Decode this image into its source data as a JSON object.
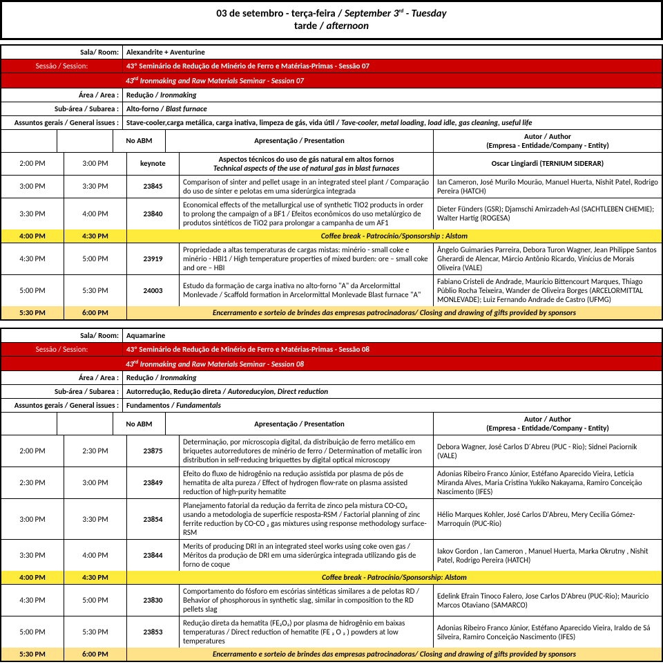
{
  "header": {
    "line1_a": "03 de setembro - terça-feira / ",
    "line1_b": "September 3",
    "line1_sup": "rd",
    "line1_c": " - Tuesday",
    "line2": "tarde / ",
    "line2_it": "afternoon"
  },
  "s1": {
    "room_lbl": "Sala/ Room:",
    "room": "Alexandrite + Aventurine",
    "sess_lbl": "Sessão / Session:",
    "sess_pt": "43º Seminário de Redução de Minério de Ferro e Matérias-Primas - Sessão  07",
    "sess_en": "43",
    "sess_en_sup": "rd",
    "sess_en2": " Ironmaking and Raw Materials Seminar - Session 07",
    "area_lbl": "Área / Area :",
    "area": "Redução / ",
    "area_it": "Ironmaking",
    "sub_lbl": "Sub-área / Subarea :",
    "sub": "Alto-forno / ",
    "sub_it": "Blast furnace",
    "gen_lbl": "Assuntos gerais / General issues :",
    "gen": "Stave-cooler,carga metálica, carga inativa, limpeza de gás, vida útil / ",
    "gen_it": "Tave-cooler, metal loading, load idle, gas cleaning, useful life",
    "h_no": "No ABM",
    "h_pres": "Apresentação / Presentation",
    "h_auth1": "Autor / Author",
    "h_auth2": "(Empresa -  Entidade/Company  - Entity)",
    "rows": [
      {
        "t1": "2:00 PM",
        "t2": "3:00 PM",
        "id": "keynote",
        "p1": "Aspectos técnicos do uso de gás natural em altos fornos",
        "p2": "Technical aspects of the use of natural gas in blast furnaces",
        "a": "Oscar Lingiardi (TERNIUM SIDERAR)",
        "center": true
      },
      {
        "t1": "3:00 PM",
        "t2": "3:30 PM",
        "id": "23845",
        "p1": "Comparison of sinter and pellet usage in an integrated steel plant / Comparação do uso de sínter e pelotas em uma siderúrgica integrada",
        "a": "Ian Cameron, José Murilo Mourão, Manuel Huerta, Nishit Patel, Rodrigo Pereira (HATCH)"
      },
      {
        "t1": "3:30 PM",
        "t2": "4:00 PM",
        "id": "23840",
        "p1": "Economical effects of the metallurgical use of synthetic TIO2 products in order to prolong the campaign of a BF1 / Efeitos econômicos do uso metalúrgico de produtos sintéticos de TiO2 para prolongar a campanha de um AF1",
        "a": "Dieter Fünders (GSR); Djamschi Amirzadeh-Asl (SACHTLEBEN CHEMIE);  Walter Hartig (ROGESA)"
      }
    ],
    "break": {
      "t1": "4:00 PM",
      "t2": "4:30 PM",
      "txt": "Coffee break -  Patrocínio/Sponsorship :  Alstom"
    },
    "rows2": [
      {
        "t1": "4:30 PM",
        "t2": "5:00 PM",
        "id": "23919",
        "p1": "Propriedade a altas temperaturas de cargas mistas: minério - small coke e minério - HBI1 / High temperature properties of mixed burden: ore – small coke and ore – HBI",
        "a": "Ângelo Guimarães Parreira, Debora Turon Wagner, Jean Philippe Santos Gherardi de Alencar, Márcio Antônio Ricardo, Vinícius de Morais Oliveira (VALE)"
      },
      {
        "t1": "5:00 PM",
        "t2": "5:30 PM",
        "id": "24003",
        "p1": "Estudo da formação de carga inativa no alto-forno \"A\" da Arcelormittal Monlevade / Scaffold formation in Arcelormittal Monlevade Blast furnace \"A\"",
        "a": "Fabiano Cristeli de Andrade, Maurício Bittencourt Marques, Thiago Públio Rocha Teixeira, Wander de Oliveira Borges (ARCELORMITTAL MONLEVADE); Luiz Fernando Andrade de Castro (UFMG)"
      }
    ],
    "close": {
      "t1": "5:30 PM",
      "t2": "6:00 PM",
      "txt": "Encerramento e sorteio de brindes das empresas patrocinadoras/ Closing and drawing of gifts provided by sponsors"
    }
  },
  "s2": {
    "room_lbl": "Sala/ Room:",
    "room": "Aquamarine",
    "sess_lbl": "Sessão / Session:",
    "sess_pt": "43º Seminário de Redução de Minério de Ferro e Matérias-Primas - Sessão  08",
    "sess_en": "43",
    "sess_en_sup": "rd",
    "sess_en2": " Ironmaking and Raw Materials Seminar - Session 08",
    "area_lbl": "Área / Area :",
    "area": "Redução / ",
    "area_it": "Ironmaking",
    "sub_lbl": "Sub-área / Subarea :",
    "sub": "Autorredução, Redução direta  / ",
    "sub_it": "Autoreducyion, Direct reduction",
    "gen_lbl": "Assuntos gerais / General issues :",
    "gen": "Fundamentos / ",
    "gen_it": "Fundamentals",
    "h_no": "No ABM",
    "h_pres": "Apresentação / Presentation",
    "h_auth1": "Autor / Author",
    "h_auth2": "(Empresa -  Entidade/Company  - Entity)",
    "rows": [
      {
        "t1": "2:00 PM",
        "t2": "2:30 PM",
        "id": "23875",
        "p1": "Determinação, por microscopia digital, da distribuição de ferro metálico em briquetes autorredutores de minério de ferro / Determination of metallic iron distribution in self-reducing briquettes by digital optical microscopy",
        "a": "Debora Wagner, José Carlos D´Abreu (PUC - Rio); Sidnei Paciornik (VALE)"
      },
      {
        "t1": "2:30 PM",
        "t2": "3:00 PM",
        "id": "23849",
        "p1": "Efeito do fluxo de hidrogênio na redução assistida por plasma de pós de hematita de alta pureza / Effect of hydrogen flow-rate on plasma assisted reduction of  high-purity hematite",
        "a": "Adonias Ribeiro Franco Júnior, Estéfano Aparecido Vieira, Letícia Miranda Alves, Maria Cristina Yukiko Nakayama, Ramiro Conceição Nascimento (IFES)"
      },
      {
        "t1": "3:00 PM",
        "t2": "3:30 PM",
        "id": "23854",
        "p1": "Planejamento fatorial da redução da ferrita de zinco pela mistura CO-CO₂ usando a metodologia de superfície resposta-RSM / Factorial planning of zinc ferrite reduction by CO-CO ₂  gas mixtures using response methodology surface-RSM",
        "a": "Hélio Marques Kohler, José Carlos D'Abreu, Mery Cecilia Gómez-Marroquín (PUC-Rio)"
      },
      {
        "t1": "3:30 PM",
        "t2": "4:00 PM",
        "id": "23844",
        "p1": "Merits of producing DRI in an integrated steel works using coke oven gas / Méritos da produção de DRI em uma siderúrgica integrada utilizando gás de forno de coque",
        "a": "Iakov Gordon , Ian Cameron , Manuel Huerta, Marka Okrutny , Nishit Patel, Rodrigo Pereira (HATCH)"
      }
    ],
    "break": {
      "t1": "4:00 PM",
      "t2": "4:30 PM",
      "txt": "Coffee break -  Patrocínio/Sponsorship:  Alstom"
    },
    "rows2": [
      {
        "t1": "4:30 PM",
        "t2": "5:00 PM",
        "id": "23830",
        "p1": "Comportamento do fósforo em escórias sintéticas similares a de pelotas RD / Behavior of phosphorous in synthetic slag, similar in composition to the RD pellets slag",
        "a": "Edelink Efrain Tinoco Falero, Jose Carlos D'Abreu (PUC-Rio); Mauricio Marcos Otaviano (SAMARCO)"
      },
      {
        "t1": "5:00 PM",
        "t2": "5:30 PM",
        "id": "23853",
        "p1": "Redução direta da hematita (FE₂O₃) por plasma de hidrogênio em baixas temperaturas / Direct reduction of hematite (FE ₂ O ₃ ) powders at low temperatures",
        "a": "Adonias Ribeiro Franco Júnior, Estéfano Aparecido Vieira, Iraldo de Sá Silveira, Ramiro Conceição Nascimento (IFES)"
      }
    ],
    "close": {
      "t1": "5:30 PM",
      "t2": "6:00 PM",
      "txt": "Encerramento e sorteio de brindes das empresas patrocinadoras/ Closing and drawing of gifts provided by sponsors"
    }
  }
}
